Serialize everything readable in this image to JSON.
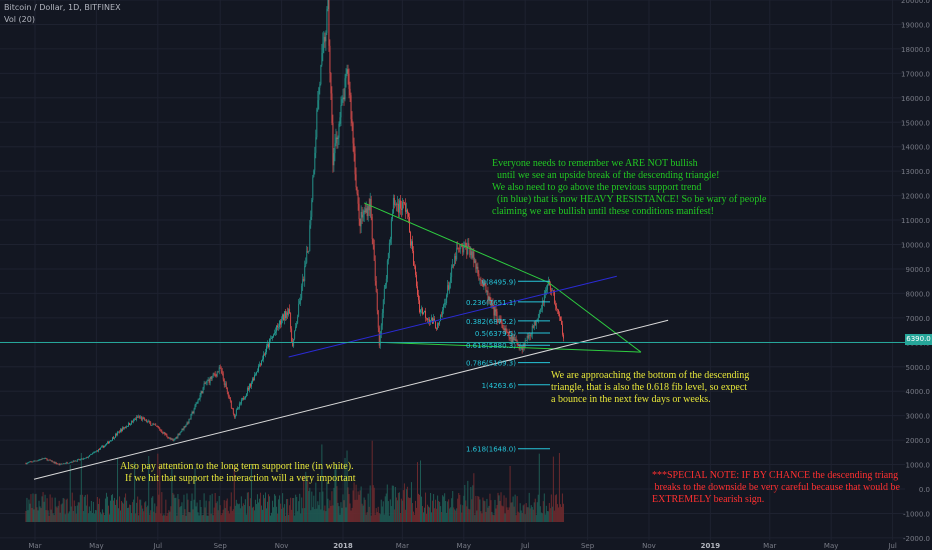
{
  "header": {
    "symbol": "Bitcoin / Dollar, 1D, BITFINEX",
    "volume": "Vol (20)"
  },
  "colors": {
    "background": "#131722",
    "grid": "#1e2230",
    "candle_up": "#26a69a",
    "candle_down": "#ef5350",
    "vol_up": "#1f5b54",
    "vol_down": "#6b2a2e",
    "triangle": "#2ecc40",
    "blue_trend": "#2b2bd6",
    "white_trend": "#dadada",
    "fib": "#26c6da",
    "support_h": "#26a69a",
    "axis_text": "#787b86"
  },
  "annotations": {
    "green": "Everyone needs to remember we ARE NOT bullish\n  until we see an upside break of the descending triangle!\nWe also need to go above the previous support trend\n  (in blue) that is now HEAVY RESISTANCE! So be wary of people\nclaiming we are bullish until these conditions manifest!",
    "yellow_right": "We are approaching the bottom of the descending\ntriangle, that is also the 0.618 fib level, so expect\na bounce in the next few days or weeks.",
    "yellow_left": "Also pay attention to the long term support line (in white).\n  If we hit that support the interaction will a very important",
    "red": "***SPECIAL NOTE: IF BY CHANCE the descending triang\n breaks to the downside be very careful because that would be\nEXTREMELY bearish sign."
  },
  "current_price_label": "6390.0",
  "chart_data": {
    "type": "candlestick",
    "title": "Bitcoin / Dollar, 1D, BITFINEX",
    "y_axis": {
      "ticks": [
        -2000,
        -1000,
        0,
        1000,
        2000,
        3000,
        4000,
        5000,
        6000,
        7000,
        8000,
        9000,
        10000,
        11000,
        12000,
        13000,
        14000,
        15000,
        16000,
        17000,
        18000,
        19000,
        20000
      ],
      "labels": [
        "-2000.0",
        "-1000.0",
        "0.0",
        "1000.0",
        "2000.0",
        "3000.0",
        "4000.0",
        "5000.0",
        "6000.0",
        "7000.0",
        "8000.0",
        "9000.0",
        "10000.0",
        "11000.0",
        "12000.0",
        "13000.0",
        "14000.0",
        "15000.0",
        "16000.0",
        "17000.0",
        "18000.0",
        "19000.0",
        "20000.0"
      ]
    },
    "x_axis": {
      "labels": [
        "Mar",
        "May",
        "Jul",
        "Sep",
        "Nov",
        "2018",
        "Mar",
        "May",
        "Jul",
        "Sep",
        "Nov",
        "2019",
        "Mar",
        "May",
        "Jul"
      ]
    },
    "price_path": [
      [
        "2017-02-20",
        1050
      ],
      [
        "2017-03-10",
        1250
      ],
      [
        "2017-03-25",
        1000
      ],
      [
        "2017-04-20",
        1250
      ],
      [
        "2017-05-10",
        1800
      ],
      [
        "2017-05-25",
        2400
      ],
      [
        "2017-06-12",
        2950
      ],
      [
        "2017-07-01",
        2500
      ],
      [
        "2017-07-16",
        1950
      ],
      [
        "2017-08-01",
        2800
      ],
      [
        "2017-08-17",
        4300
      ],
      [
        "2017-09-01",
        4900
      ],
      [
        "2017-09-15",
        3000
      ],
      [
        "2017-10-01",
        4300
      ],
      [
        "2017-10-20",
        6000
      ],
      [
        "2017-11-08",
        7400
      ],
      [
        "2017-11-12",
        5800
      ],
      [
        "2017-11-28",
        10000
      ],
      [
        "2017-12-07",
        16000
      ],
      [
        "2017-12-17",
        19600
      ],
      [
        "2017-12-22",
        13500
      ],
      [
        "2018-01-06",
        17100
      ],
      [
        "2018-01-17",
        10900
      ],
      [
        "2018-01-28",
        11700
      ],
      [
        "2018-02-06",
        6000
      ],
      [
        "2018-02-20",
        11700
      ],
      [
        "2018-03-05",
        11500
      ],
      [
        "2018-03-18",
        7400
      ],
      [
        "2018-04-01",
        6800
      ],
      [
        "2018-04-06",
        6600
      ],
      [
        "2018-04-24",
        9700
      ],
      [
        "2018-05-06",
        9900
      ],
      [
        "2018-05-29",
        7400
      ],
      [
        "2018-06-13",
        6300
      ],
      [
        "2018-06-28",
        5800
      ],
      [
        "2018-07-10",
        6700
      ],
      [
        "2018-07-24",
        8400
      ],
      [
        "2018-07-27",
        8200
      ],
      [
        "2018-08-08",
        6300
      ]
    ],
    "series": [
      {
        "name": "Triangle upper",
        "points": [
          [
            "2018-01-22",
            11700
          ],
          [
            "2018-07-24",
            8450
          ],
          [
            "2018-10-24",
            5600
          ]
        ]
      },
      {
        "name": "Triangle lower",
        "points": [
          [
            "2018-02-06",
            6000
          ],
          [
            "2018-10-24",
            5600
          ]
        ]
      },
      {
        "name": "Blue trend",
        "points": [
          [
            "2017-11-08",
            5400
          ],
          [
            "2018-09-30",
            8700
          ]
        ]
      },
      {
        "name": "White support",
        "points": [
          [
            "2017-02-28",
            400
          ],
          [
            "2018-11-20",
            6900
          ]
        ]
      }
    ],
    "fib_levels": [
      {
        "label": "0(8495.9)",
        "value": 8495.9
      },
      {
        "label": "0.236(7651.1)",
        "value": 7651.1
      },
      {
        "label": "0.382(6875.2)",
        "value": 6875.2
      },
      {
        "label": "0.5(6379.5)",
        "value": 6379.5
      },
      {
        "label": "0.618(5880.3)",
        "value": 5880.3
      },
      {
        "label": "0.786(5169.3)",
        "value": 5169.3
      },
      {
        "label": "1(4263.6)",
        "value": 4263.6
      },
      {
        "label": "1.618(1648.0)",
        "value": 1648.0
      }
    ],
    "support_level": 5990
  }
}
